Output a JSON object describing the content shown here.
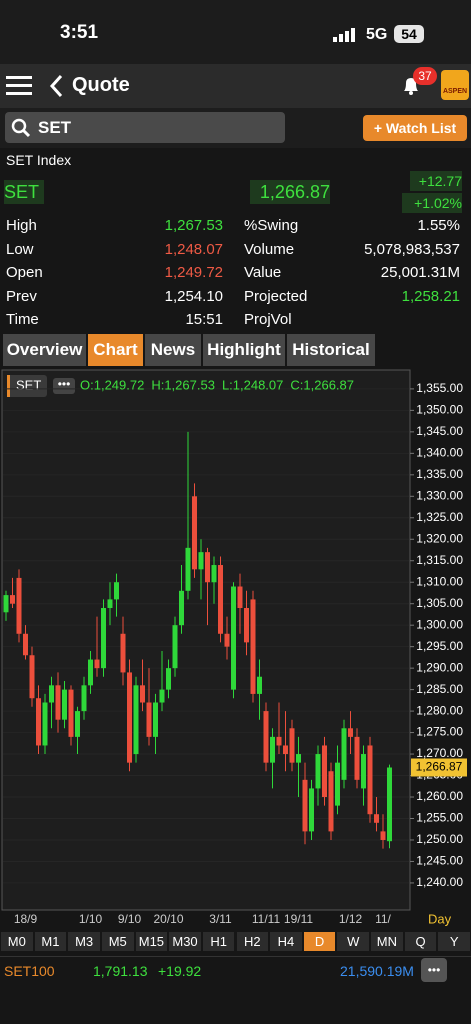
{
  "status_bar": {
    "time": "3:51",
    "network": "5G",
    "battery": "54"
  },
  "header": {
    "title": "Quote",
    "badge": "37",
    "logo": "ASPEN"
  },
  "search": {
    "query": "SET",
    "button": "+ Watch List"
  },
  "quote": {
    "name": "SET Index",
    "symbol": "SET",
    "last": "1,266.87",
    "change": "+12.77",
    "change_pct": "+1.02%"
  },
  "stats": {
    "left": [
      {
        "label": "High",
        "value": "1,267.53",
        "color": "#3ee03e"
      },
      {
        "label": "Low",
        "value": "1,248.07",
        "color": "#ef5a45"
      },
      {
        "label": "Open",
        "value": "1,249.72",
        "color": "#ef5a45"
      },
      {
        "label": "Prev",
        "value": "1,254.10",
        "color": "#ffffff"
      },
      {
        "label": "Time",
        "value": "15:51",
        "color": "#ffffff"
      }
    ],
    "right": [
      {
        "label": "%Swing",
        "value": "1.55%",
        "color": "#ffffff"
      },
      {
        "label": "Volume",
        "value": "5,078,983,537",
        "color": "#ffffff"
      },
      {
        "label": "Value",
        "value": "25,001.31M",
        "color": "#ffffff"
      },
      {
        "label": "Projected",
        "value": "1,258.21",
        "color": "#3ee03e"
      },
      {
        "label": "ProjVol"
      }
    ]
  },
  "tabs": {
    "items": [
      "Overview",
      "Chart",
      "News",
      "Highlight",
      "Historical"
    ],
    "active": 1
  },
  "chart_data": {
    "type": "candlestick",
    "legend_symbol": "SET",
    "legend_text": [
      "O:1,249.72",
      "H:1,267.53",
      "L:1,248.07",
      "C:1,266.87"
    ],
    "up_color": "#2fd83a",
    "down_color": "#ec4f3c",
    "grid": true,
    "interval_label": "Day",
    "price_tag": {
      "value": 1266.87,
      "label": "1,266.87"
    },
    "categories": [
      null,
      null,
      null,
      "18/9",
      null,
      null,
      null,
      null,
      null,
      null,
      null,
      null,
      null,
      "1/10",
      null,
      null,
      null,
      null,
      null,
      "9/10",
      null,
      null,
      null,
      null,
      null,
      "20/10",
      null,
      null,
      null,
      null,
      null,
      null,
      null,
      "3/11",
      null,
      null,
      null,
      null,
      null,
      null,
      "11/11",
      null,
      null,
      null,
      null,
      "19/11",
      null,
      null,
      null,
      null,
      null,
      null,
      null,
      "1/12",
      null,
      null,
      null,
      null,
      "11/",
      null
    ],
    "open": [
      1303,
      1307,
      1311,
      1298,
      1293,
      1283,
      1272,
      1282,
      1286,
      1278,
      1285,
      1274,
      1280,
      1286,
      1292,
      1290,
      1304,
      1306,
      1298,
      1289,
      1270,
      1286,
      1282,
      1274,
      1282,
      1285,
      1290,
      1300,
      1308,
      1330,
      1313,
      1317,
      1310,
      1314,
      1298,
      1285,
      1309,
      1304,
      1306,
      1284,
      1280,
      1268,
      1274,
      1272,
      1276,
      1268,
      1264,
      1252,
      1262,
      1272,
      1266,
      1258,
      1264,
      1276,
      1274,
      1262,
      1272,
      1256,
      1252,
      1249.72
    ],
    "high": [
      1308,
      1311,
      1313,
      1300,
      1295,
      1286,
      1284,
      1288,
      1289,
      1287,
      1286,
      1281,
      1288,
      1294,
      1302,
      1306,
      1310,
      1312,
      1302,
      1292,
      1288,
      1292,
      1290,
      1284,
      1294,
      1292,
      1302,
      1314,
      1345,
      1333,
      1320,
      1318,
      1316,
      1316,
      1302,
      1310,
      1312,
      1308,
      1308,
      1292,
      1282,
      1276,
      1282,
      1280,
      1278,
      1274,
      1268,
      1264,
      1272,
      1274,
      1268,
      1272,
      1278,
      1280,
      1276,
      1272,
      1274,
      1260,
      1256,
      1267.53
    ],
    "low": [
      1301,
      1304,
      1296,
      1292,
      1281,
      1270,
      1270,
      1276,
      1275,
      1276,
      1272,
      1270,
      1278,
      1284,
      1288,
      1288,
      1300,
      1302,
      1286,
      1266,
      1268,
      1280,
      1272,
      1270,
      1280,
      1283,
      1288,
      1298,
      1306,
      1311,
      1306,
      1300,
      1305,
      1296,
      1292,
      1283,
      1298,
      1293,
      1282,
      1278,
      1266,
      1262,
      1270,
      1266,
      1266,
      1260,
      1249,
      1250,
      1258,
      1258,
      1250,
      1256,
      1262,
      1270,
      1262,
      1258,
      1254,
      1252,
      1248,
      1248.07
    ],
    "close": [
      1307,
      1305,
      1298,
      1293,
      1283,
      1272,
      1282,
      1286,
      1278,
      1285,
      1274,
      1280,
      1286,
      1292,
      1290,
      1304,
      1306,
      1310,
      1289,
      1268,
      1286,
      1282,
      1274,
      1282,
      1285,
      1290,
      1300,
      1308,
      1318,
      1313,
      1317,
      1310,
      1314,
      1298,
      1295,
      1309,
      1304,
      1296,
      1284,
      1288,
      1268,
      1274,
      1272,
      1270,
      1268,
      1270,
      1252,
      1262,
      1270,
      1260,
      1252,
      1268,
      1276,
      1274,
      1264,
      1270,
      1256,
      1254,
      1250,
      1266.87
    ],
    "ylim": [
      1233.7,
      1359.4
    ],
    "yticks": [
      {
        "value": 1240,
        "label": "1,240.00"
      },
      {
        "value": 1245,
        "label": "1,245.00"
      },
      {
        "value": 1250,
        "label": "1,250.00"
      },
      {
        "value": 1255,
        "label": "1,255.00"
      },
      {
        "value": 1260,
        "label": "1,260.00"
      },
      {
        "value": 1265,
        "label": "1,265.00"
      },
      {
        "value": 1270,
        "label": "1,270.00"
      },
      {
        "value": 1275,
        "label": "1,275.00"
      },
      {
        "value": 1280,
        "label": "1,280.00"
      },
      {
        "value": 1285,
        "label": "1,285.00"
      },
      {
        "value": 1290,
        "label": "1,290.00"
      },
      {
        "value": 1295,
        "label": "1,295.00"
      },
      {
        "value": 1300,
        "label": "1,300.00"
      },
      {
        "value": 1305,
        "label": "1,305.00"
      },
      {
        "value": 1310,
        "label": "1,310.00"
      },
      {
        "value": 1315,
        "label": "1,315.00"
      },
      {
        "value": 1320,
        "label": "1,320.00"
      },
      {
        "value": 1325,
        "label": "1,325.00"
      },
      {
        "value": 1330,
        "label": "1,330.00"
      },
      {
        "value": 1335,
        "label": "1,335.00"
      },
      {
        "value": 1340,
        "label": "1,340.00"
      },
      {
        "value": 1345,
        "label": "1,345.00"
      },
      {
        "value": 1350,
        "label": "1,350.00"
      },
      {
        "value": 1355,
        "label": "1,355.00"
      }
    ]
  },
  "periods": {
    "items": [
      "M0",
      "M1",
      "M3",
      "M5",
      "M15",
      "M30",
      "H1",
      "H2",
      "H4",
      "D",
      "W",
      "MN",
      "Q",
      "Y"
    ],
    "active": 9
  },
  "footer": {
    "symbol": "SET100",
    "last": "1,791.13",
    "change": "+19.92",
    "value": "21,590.19M"
  }
}
